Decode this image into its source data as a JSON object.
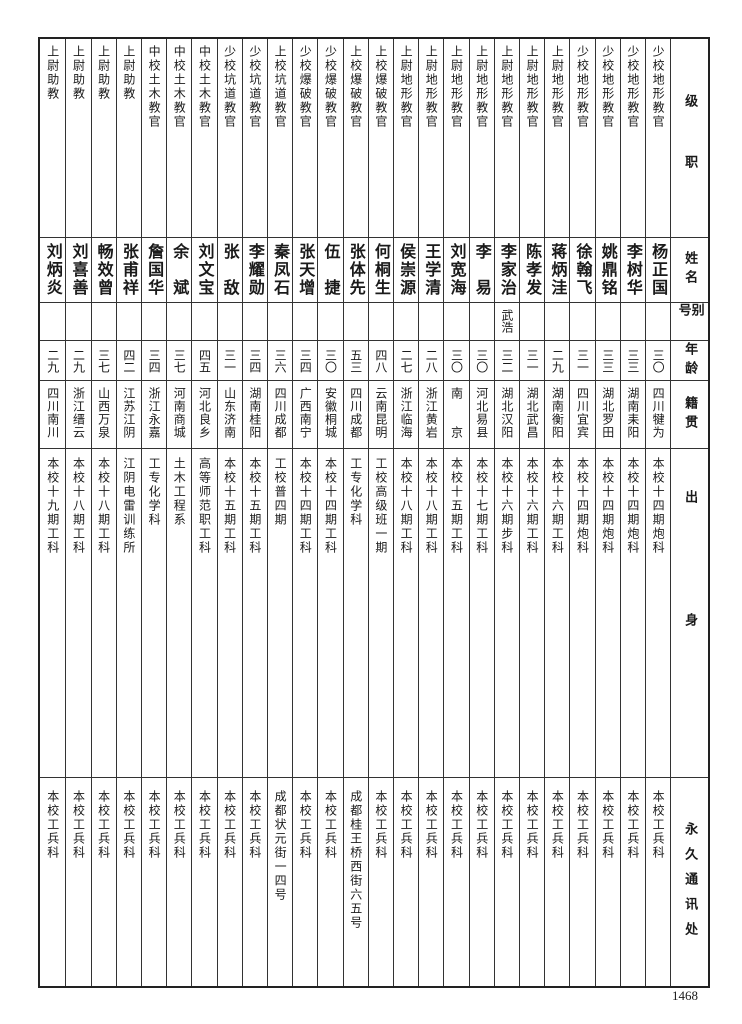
{
  "headers": {
    "rank": "级职",
    "name": "姓名",
    "alias": "别号",
    "age": "年龄",
    "native_place": "籍贯",
    "origin": "出身",
    "address": "永久通讯处"
  },
  "rows": [
    {
      "rank": "少校地形教官",
      "name": "杨正国",
      "alias": "",
      "age": "三〇",
      "native_place": "四川犍为",
      "origin": "本校十四期炮科",
      "address": "本校工兵科"
    },
    {
      "rank": "少校地形教官",
      "name": "李树华",
      "alias": "",
      "age": "三三",
      "native_place": "湖南耒阳",
      "origin": "本校十四期炮科",
      "address": "本校工兵科"
    },
    {
      "rank": "少校地形教官",
      "name": "姚鼎铭",
      "alias": "",
      "age": "三三",
      "native_place": "湖北罗田",
      "origin": "本校十四期炮科",
      "address": "本校工兵科"
    },
    {
      "rank": "少校地形教官",
      "name": "徐翰飞",
      "alias": "",
      "age": "三一",
      "native_place": "四川宜宾",
      "origin": "本校十四期炮科",
      "address": "本校工兵科"
    },
    {
      "rank": "上尉地形教官",
      "name": "蒋炳洼",
      "alias": "",
      "age": "二九",
      "native_place": "湖南衡阳",
      "origin": "本校十六期工科",
      "address": "本校工兵科"
    },
    {
      "rank": "上尉地形教官",
      "name": "陈孝发",
      "alias": "",
      "age": "三一",
      "native_place": "湖北武昌",
      "origin": "本校十六期工科",
      "address": "本校工兵科"
    },
    {
      "rank": "上尉地形教官",
      "name": "李家治",
      "alias": "武浩",
      "age": "三二",
      "native_place": "湖北汉阳",
      "origin": "本校十六期步科",
      "address": "本校工兵科"
    },
    {
      "rank": "上尉地形教官",
      "name": "李　易",
      "alias": "",
      "age": "三〇",
      "native_place": "河北易县",
      "origin": "本校十七期工科",
      "address": "本校工兵科"
    },
    {
      "rank": "上尉地形教官",
      "name": "刘宽海",
      "alias": "",
      "age": "三〇",
      "native_place": "南　　京",
      "origin": "本校十五期工科",
      "address": "本校工兵科"
    },
    {
      "rank": "上尉地形教官",
      "name": "王学清",
      "alias": "",
      "age": "二八",
      "native_place": "浙江黄岩",
      "origin": "本校十八期工科",
      "address": "本校工兵科"
    },
    {
      "rank": "上尉地形教官",
      "name": "侯崇源",
      "alias": "",
      "age": "二七",
      "native_place": "浙江临海",
      "origin": "本校十八期工科",
      "address": "本校工兵科"
    },
    {
      "rank": "上校爆破教官",
      "name": "何桐生",
      "alias": "",
      "age": "四八",
      "native_place": "云南昆明",
      "origin": "工校高级班一期",
      "address": "本校工兵科"
    },
    {
      "rank": "上校爆破教官",
      "name": "张体先",
      "alias": "",
      "age": "五三",
      "native_place": "四川成都",
      "origin": "工专化学科",
      "address": "成都桂王桥西街六五号"
    },
    {
      "rank": "少校爆破教官",
      "name": "伍　捷",
      "alias": "",
      "age": "三〇",
      "native_place": "安徽桐城",
      "origin": "本校十四期工科",
      "address": "本校工兵科"
    },
    {
      "rank": "少校爆破教官",
      "name": "张天增",
      "alias": "",
      "age": "三四",
      "native_place": "广西南宁",
      "origin": "本校十四期工科",
      "address": "本校工兵科"
    },
    {
      "rank": "上校坑道教官",
      "name": "秦凤石",
      "alias": "",
      "age": "三六",
      "native_place": "四川成都",
      "origin": "工校普四期",
      "address": "成都状元街一四号"
    },
    {
      "rank": "少校坑道教官",
      "name": "李耀勋",
      "alias": "",
      "age": "三四",
      "native_place": "湖南桂阳",
      "origin": "本校十五期工科",
      "address": "本校工兵科"
    },
    {
      "rank": "少校坑道教官",
      "name": "张　敌",
      "alias": "",
      "age": "三一",
      "native_place": "山东济南",
      "origin": "本校十五期工科",
      "address": "本校工兵科"
    },
    {
      "rank": "中校土木教官",
      "name": "刘文宝",
      "alias": "",
      "age": "四五",
      "native_place": "河北良乡",
      "origin": "高等师范职工科",
      "address": "本校工兵科"
    },
    {
      "rank": "中校土木教官",
      "name": "余　斌",
      "alias": "",
      "age": "三七",
      "native_place": "河南商城",
      "origin": "土木工程系",
      "address": "本校工兵科"
    },
    {
      "rank": "中校土木教官",
      "name": "詹国华",
      "alias": "",
      "age": "三四",
      "native_place": "浙江永嘉",
      "origin": "工专化学科",
      "address": "本校工兵科"
    },
    {
      "rank": "上尉助教",
      "name": "张甫祥",
      "alias": "",
      "age": "四二",
      "native_place": "江苏江阴",
      "origin": "江阴电雷训练所",
      "address": "本校工兵科"
    },
    {
      "rank": "上尉助教",
      "name": "畅效曾",
      "alias": "",
      "age": "三七",
      "native_place": "山西万泉",
      "origin": "本校十八期工科",
      "address": "本校工兵科"
    },
    {
      "rank": "上尉助教",
      "name": "刘喜善",
      "alias": "",
      "age": "二九",
      "native_place": "浙江缙云",
      "origin": "本校十八期工科",
      "address": "本校工兵科"
    },
    {
      "rank": "上尉助教",
      "name": "刘炳炎",
      "alias": "",
      "age": "二九",
      "native_place": "四川南川",
      "origin": "本校十九期工科",
      "address": "本校工兵科"
    }
  ],
  "page_number": "1468"
}
